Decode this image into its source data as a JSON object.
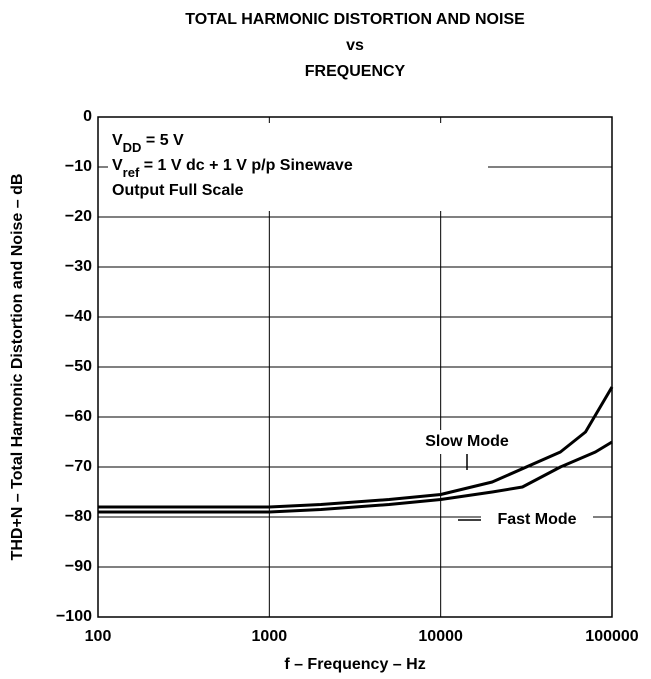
{
  "chart_data": {
    "type": "line",
    "title": [
      "TOTAL HARMONIC DISTORTION AND NOISE",
      "vs",
      "FREQUENCY"
    ],
    "x_label": "f – Frequency – Hz",
    "y_label": "THD+N – Total Harmonic Distortion and Noise – dB",
    "annotations": [
      [
        {
          "text": "V"
        },
        {
          "text": "DD",
          "sub": true
        },
        {
          "text": " = 5 V"
        }
      ],
      [
        {
          "text": "V"
        },
        {
          "text": "ref",
          "sub": true
        },
        {
          "text": " = 1 V dc + 1 V p/p Sinewave"
        }
      ],
      [
        {
          "text": "Output Full Scale"
        }
      ]
    ],
    "x_scale": "log",
    "xlim": [
      100,
      100000
    ],
    "xticks": [
      100,
      1000,
      10000,
      100000
    ],
    "ylim": [
      -100,
      0
    ],
    "yticks": [
      0,
      {
        "value": -10,
        "label": "−10"
      },
      {
        "value": -20,
        "label": "−20"
      },
      {
        "value": -30,
        "label": "−30"
      },
      {
        "value": -40,
        "label": "−40"
      },
      {
        "value": -50,
        "label": "−50"
      },
      {
        "value": -60,
        "label": "−60"
      },
      {
        "value": -70,
        "label": "−70"
      },
      {
        "value": -80,
        "label": "−80"
      },
      {
        "value": -90,
        "label": "−90"
      },
      {
        "value": -100,
        "label": "−100"
      }
    ],
    "grid": true,
    "series": [
      {
        "name": "Slow Mode",
        "color": "#000000",
        "x": [
          100,
          1000,
          2000,
          5000,
          10000,
          20000,
          50000,
          70000,
          100000
        ],
        "values": [
          -78,
          -78,
          -77.5,
          -76.5,
          -75.5,
          -73,
          -67,
          -63,
          -54
        ]
      },
      {
        "name": "Fast Mode",
        "color": "#000000",
        "x": [
          100,
          1000,
          2000,
          5000,
          10000,
          20000,
          30000,
          50000,
          80000,
          100000
        ],
        "values": [
          -79,
          -79,
          -78.5,
          -77.5,
          -76.5,
          -75,
          -74,
          -70,
          -67,
          -65
        ]
      }
    ]
  }
}
